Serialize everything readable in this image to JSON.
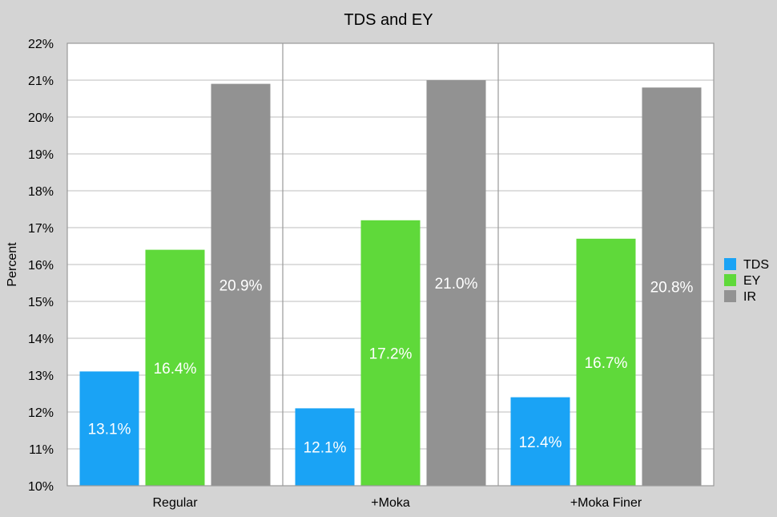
{
  "chart_data": {
    "type": "bar",
    "title": "TDS and EY",
    "xlabel": "",
    "ylabel": "Percent",
    "ylim": [
      10,
      22
    ],
    "ytick_labels": [
      "10%",
      "11%",
      "12%",
      "13%",
      "14%",
      "15%",
      "16%",
      "17%",
      "18%",
      "19%",
      "20%",
      "21%",
      "22%"
    ],
    "categories": [
      "Regular",
      "+Moka",
      "+Moka Finer"
    ],
    "series": [
      {
        "name": "TDS",
        "color": "#1aa3f5",
        "values": [
          13.1,
          12.1,
          12.4
        ],
        "labels": [
          "13.1%",
          "12.1%",
          "12.4%"
        ]
      },
      {
        "name": "EY",
        "color": "#5fd93a",
        "values": [
          16.4,
          17.2,
          16.7
        ],
        "labels": [
          "16.4%",
          "17.2%",
          "16.7%"
        ]
      },
      {
        "name": "IR",
        "color": "#929292",
        "values": [
          20.9,
          21.0,
          20.8
        ],
        "labels": [
          "20.9%",
          "21.0%",
          "20.8%"
        ]
      }
    ],
    "grid": true,
    "legend_position": "right"
  }
}
